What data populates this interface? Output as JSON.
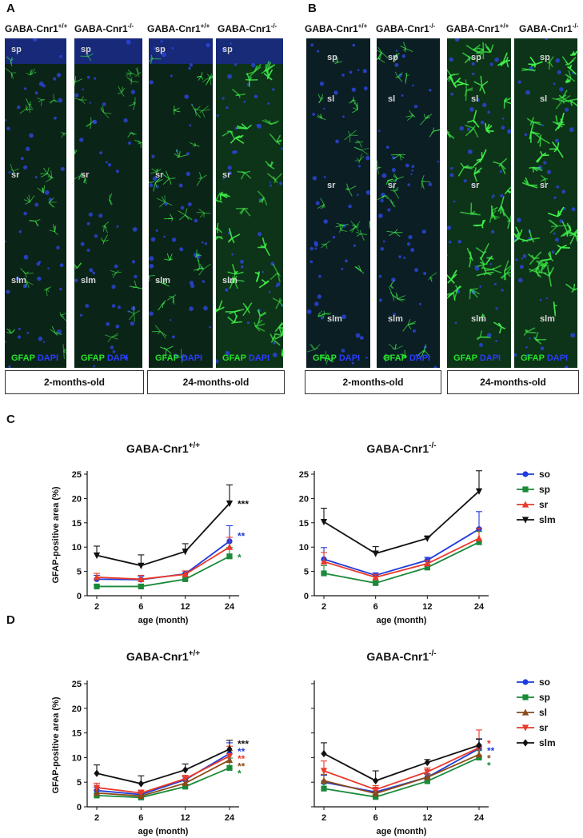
{
  "figure": {
    "panel_labels": {
      "a": "A",
      "b": "B",
      "c": "C",
      "d": "D"
    },
    "micrographs": {
      "col_titles": [
        "GABA-Cnr1+/+",
        "GABA-Cnr1-/-",
        "GABA-Cnr1+/+",
        "GABA-Cnr1-/-"
      ],
      "stain_gfap": "GFAP",
      "stain_dapi": "DAPI",
      "age_labels": [
        "2-months-old",
        "24-months-old"
      ],
      "panel_a_layers": [
        "sp",
        "sr",
        "slm"
      ],
      "panel_b_layers": [
        "sp",
        "sl",
        "sr",
        "slm"
      ]
    }
  },
  "chart_data": [
    {
      "type": "line",
      "panel": "C",
      "title": "GABA-Cnr1+/+",
      "xlabel": "age (month)",
      "ylabel": "GFAP-positive area (%)",
      "categories": [
        "2",
        "6",
        "12",
        "24"
      ],
      "ylim": [
        0,
        25
      ],
      "yticks": [
        "0",
        "5",
        "10",
        "15",
        "20",
        "25"
      ],
      "legend_position": "right",
      "series": [
        {
          "name": "so",
          "color": "#1f3bdc",
          "marker": "circle",
          "values": [
            3.4,
            3.3,
            4.5,
            11.2
          ],
          "errors": [
            0.8,
            0.7,
            0.6,
            3.2
          ]
        },
        {
          "name": "sp",
          "color": "#1a8a3a",
          "marker": "square",
          "values": [
            1.9,
            1.9,
            3.4,
            8.1
          ],
          "errors": [
            0.3,
            0.3,
            0.6,
            1.8
          ]
        },
        {
          "name": "sr",
          "color": "#e83a2a",
          "marker": "triangle-up",
          "values": [
            3.8,
            3.4,
            4.4,
            10.0
          ],
          "errors": [
            0.8,
            0.8,
            0.7,
            2.0
          ]
        },
        {
          "name": "slm",
          "color": "#111111",
          "marker": "triangle-down",
          "values": [
            8.3,
            6.2,
            9.1,
            19.0
          ],
          "errors": [
            1.9,
            2.2,
            1.6,
            3.8
          ]
        }
      ],
      "significance": [
        {
          "text": "***",
          "color": "#111111",
          "y": 19.0
        },
        {
          "text": "**",
          "color": "#1f3bdc",
          "y": 12.4
        },
        {
          "text": "*",
          "color": "#1a8a3a",
          "y": 8.0
        }
      ]
    },
    {
      "type": "line",
      "panel": "C",
      "title": "GABA-Cnr1-/-",
      "xlabel": "age (month)",
      "ylabel": "",
      "categories": [
        "2",
        "6",
        "12",
        "24"
      ],
      "ylim": [
        0,
        25
      ],
      "yticks": [
        "0",
        "5",
        "10",
        "15",
        "20",
        "25"
      ],
      "legend_position": "right",
      "series": [
        {
          "name": "so",
          "color": "#1f3bdc",
          "marker": "circle",
          "values": [
            7.5,
            4.2,
            7.3,
            13.7
          ],
          "errors": [
            2.4,
            0.5,
            0.6,
            3.6
          ]
        },
        {
          "name": "sp",
          "color": "#1a8a3a",
          "marker": "square",
          "values": [
            4.6,
            2.6,
            5.8,
            11.0
          ],
          "errors": [
            1.6,
            0.4,
            0.7,
            2.2
          ]
        },
        {
          "name": "sr",
          "color": "#e83a2a",
          "marker": "triangle-up",
          "values": [
            7.0,
            3.8,
            6.6,
            11.8
          ],
          "errors": [
            1.9,
            0.6,
            0.7,
            2.1
          ]
        },
        {
          "name": "slm",
          "color": "#111111",
          "marker": "triangle-down",
          "values": [
            15.2,
            8.7,
            11.8,
            21.5
          ],
          "errors": [
            2.8,
            1.4,
            0.3,
            4.2
          ]
        }
      ],
      "significance": []
    },
    {
      "type": "line",
      "panel": "D",
      "title": "GABA-Cnr1+/+",
      "xlabel": "age (month)",
      "ylabel": "GFAP-positive area (%)",
      "categories": [
        "2",
        "6",
        "12",
        "24"
      ],
      "ylim": [
        0,
        25
      ],
      "yticks": [
        "0",
        "5",
        "10",
        "15",
        "20",
        "25"
      ],
      "legend_position": "right",
      "series": [
        {
          "name": "so",
          "color": "#1f3bdc",
          "marker": "circle",
          "values": [
            3.3,
            2.5,
            5.5,
            10.8
          ],
          "errors": [
            0.7,
            0.5,
            0.6,
            2.2
          ]
        },
        {
          "name": "sp",
          "color": "#1a8a3a",
          "marker": "square",
          "values": [
            2.3,
            1.9,
            4.1,
            7.9
          ],
          "errors": [
            0.4,
            0.4,
            0.5,
            2.0
          ]
        },
        {
          "name": "sl",
          "color": "#8a4a1a",
          "marker": "triangle-up",
          "values": [
            2.8,
            2.2,
            4.8,
            9.5
          ],
          "errors": [
            0.6,
            0.5,
            0.6,
            1.9
          ]
        },
        {
          "name": "sr",
          "color": "#e83a2a",
          "marker": "triangle-down",
          "values": [
            3.9,
            2.8,
            5.7,
            10.3
          ],
          "errors": [
            0.9,
            0.6,
            0.7,
            2.0
          ]
        },
        {
          "name": "slm",
          "color": "#111111",
          "marker": "diamond",
          "values": [
            6.8,
            4.7,
            7.5,
            11.7
          ],
          "errors": [
            1.7,
            1.6,
            1.2,
            1.8
          ]
        }
      ],
      "significance": [
        {
          "text": "***",
          "color": "#111111",
          "y": 12.9
        },
        {
          "text": "**",
          "color": "#1f3bdc",
          "y": 11.4
        },
        {
          "text": "**",
          "color": "#e83a2a",
          "y": 9.9
        },
        {
          "text": "**",
          "color": "#8a4a1a",
          "y": 8.4
        },
        {
          "text": "*",
          "color": "#1a8a3a",
          "y": 6.9
        }
      ]
    },
    {
      "type": "line",
      "panel": "D",
      "title": "GABA-Cnr1-/-",
      "xlabel": "age (month)",
      "ylabel": "",
      "categories": [
        "2",
        "6",
        "12",
        "24"
      ],
      "ylim": [
        0,
        25
      ],
      "yticks": [
        "0",
        "5",
        "10",
        "15",
        "20",
        "25"
      ],
      "legend_position": "right",
      "series": [
        {
          "name": "so",
          "color": "#1f3bdc",
          "marker": "circle",
          "values": [
            5.0,
            3.0,
            6.0,
            11.8
          ],
          "errors": [
            1.4,
            0.6,
            0.7,
            1.9
          ]
        },
        {
          "name": "sp",
          "color": "#1a8a3a",
          "marker": "square",
          "values": [
            3.7,
            2.0,
            5.2,
            10.0
          ],
          "errors": [
            1.0,
            0.4,
            0.5,
            1.5
          ]
        },
        {
          "name": "sl",
          "color": "#8a4a1a",
          "marker": "triangle-up",
          "values": [
            5.3,
            2.7,
            6.0,
            10.6
          ],
          "errors": [
            1.3,
            0.5,
            0.6,
            1.6
          ]
        },
        {
          "name": "sr",
          "color": "#e83a2a",
          "marker": "triangle-down",
          "values": [
            7.3,
            3.5,
            7.1,
            12.0
          ],
          "errors": [
            2.0,
            0.8,
            0.8,
            3.6
          ]
        },
        {
          "name": "slm",
          "color": "#111111",
          "marker": "diamond",
          "values": [
            10.8,
            5.3,
            9.0,
            12.5
          ],
          "errors": [
            2.2,
            2.0,
            0.6,
            1.3
          ]
        }
      ],
      "significance": [
        {
          "text": "*",
          "color": "#e83a2a",
          "y": 13.0
        },
        {
          "text": "**",
          "color": "#1f3bdc",
          "y": 11.5
        },
        {
          "text": "*",
          "color": "#8a4a1a",
          "y": 10.0
        },
        {
          "text": "*",
          "color": "#1a8a3a",
          "y": 8.5
        }
      ]
    }
  ]
}
